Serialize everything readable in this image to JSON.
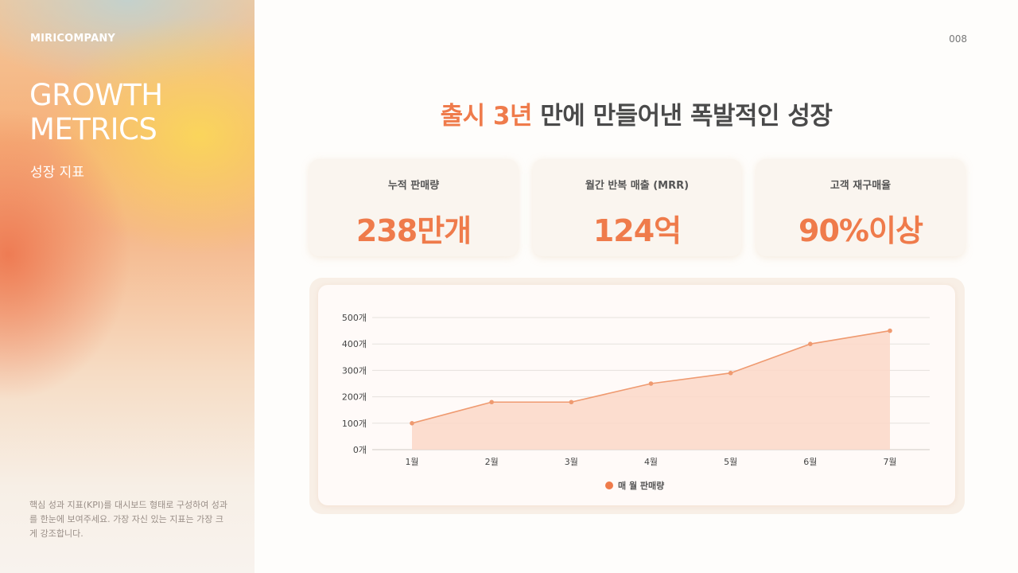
{
  "sidebar": {
    "brand": "MIRICOMPANY",
    "title_line1": "GROWTH",
    "title_line2": "METRICS",
    "subtitle": "성장 지표",
    "note": "핵심 성과 지표(KPI)를 대시보드 형태로 구성하여 성과를 한눈에 보여주세요. 가장 자신 있는 지표는 가장 크게 강조합니다."
  },
  "page_number": "008",
  "headline": {
    "accent": "출시 3년",
    "rest": " 만에 만들어낸 폭발적인 성장"
  },
  "kpis": [
    {
      "label": "누적 판매량",
      "value": "238만개"
    },
    {
      "label": "월간 반복 매출 (MRR)",
      "value": "124억"
    },
    {
      "label": "고객 재구매율",
      "value": "90%이상"
    }
  ],
  "colors": {
    "accent": "#ef7b4b",
    "line": "#ef9a70",
    "area": "#fbd7c8"
  },
  "chart_data": {
    "type": "area",
    "categories": [
      "1월",
      "2월",
      "3월",
      "4월",
      "5월",
      "6월",
      "7월"
    ],
    "series": [
      {
        "name": "매 월 판매량",
        "values": [
          100,
          180,
          180,
          250,
          290,
          400,
          450
        ]
      }
    ],
    "y_ticks": [
      "0개",
      "100개",
      "200개",
      "300개",
      "400개",
      "500개"
    ],
    "ylim": [
      0,
      500
    ],
    "grid": true,
    "legend_position": "bottom"
  }
}
